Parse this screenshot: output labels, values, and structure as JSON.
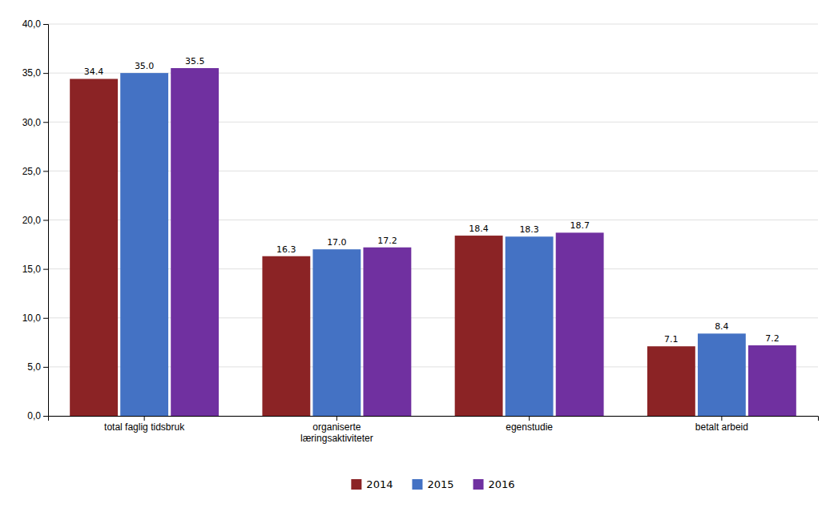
{
  "chart_data": {
    "type": "bar",
    "categories": [
      "total faglig tidsbruk",
      "organiserte\nlæringsaktiviteter",
      "egenstudie",
      "betalt arbeid"
    ],
    "series": [
      {
        "name": "2014",
        "color": "#8B2325",
        "values": [
          34.4,
          16.3,
          18.4,
          7.1
        ],
        "value_labels": [
          "34.4",
          "16.3",
          "18.4",
          "7.1"
        ]
      },
      {
        "name": "2015",
        "color": "#4472C4",
        "values": [
          35.0,
          17.0,
          18.3,
          8.4
        ],
        "value_labels": [
          "35.0",
          "17.0",
          "18.3",
          "8.4"
        ]
      },
      {
        "name": "2016",
        "color": "#7030A0",
        "values": [
          35.5,
          17.2,
          18.7,
          7.2
        ],
        "value_labels": [
          "35.5",
          "17.2",
          "18.7",
          "7.2"
        ]
      }
    ],
    "ylim": [
      0,
      40
    ],
    "yticks": [
      {
        "value": 0.0,
        "label": "0,0"
      },
      {
        "value": 5.0,
        "label": "5,0"
      },
      {
        "value": 10.0,
        "label": "10,0"
      },
      {
        "value": 15.0,
        "label": "15,0"
      },
      {
        "value": 20.0,
        "label": "20,0"
      },
      {
        "value": 25.0,
        "label": "25,0"
      },
      {
        "value": 30.0,
        "label": "30,0"
      },
      {
        "value": 35.0,
        "label": "35,0"
      },
      {
        "value": 40.0,
        "label": "40,0"
      }
    ],
    "grid": true,
    "legend": "bottom",
    "data_labels": true
  }
}
